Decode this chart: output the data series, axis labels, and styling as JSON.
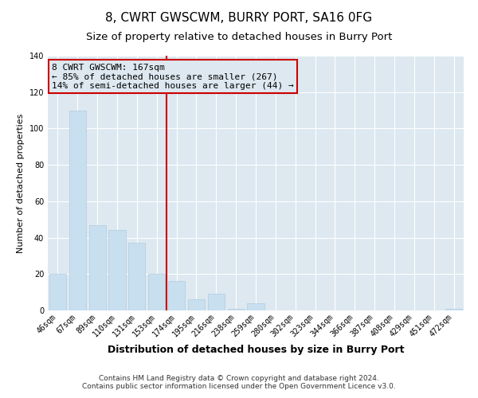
{
  "title": "8, CWRT GWSCWM, BURRY PORT, SA16 0FG",
  "subtitle": "Size of property relative to detached houses in Burry Port",
  "xlabel": "Distribution of detached houses by size in Burry Port",
  "ylabel": "Number of detached properties",
  "bar_color": "#c8dff0",
  "bar_edge_color": "#b0cce0",
  "categories": [
    "46sqm",
    "67sqm",
    "89sqm",
    "110sqm",
    "131sqm",
    "153sqm",
    "174sqm",
    "195sqm",
    "216sqm",
    "238sqm",
    "259sqm",
    "280sqm",
    "302sqm",
    "323sqm",
    "344sqm",
    "366sqm",
    "387sqm",
    "408sqm",
    "429sqm",
    "451sqm",
    "472sqm"
  ],
  "values": [
    20,
    110,
    47,
    44,
    37,
    20,
    16,
    6,
    9,
    1,
    4,
    0,
    0,
    0,
    0,
    0,
    0,
    0,
    0,
    0,
    1
  ],
  "ylim": [
    0,
    140
  ],
  "yticks": [
    0,
    20,
    40,
    60,
    80,
    100,
    120,
    140
  ],
  "vline_color": "#cc0000",
  "annotation_text": "8 CWRT GWSCWM: 167sqm\n← 85% of detached houses are smaller (267)\n14% of semi-detached houses are larger (44) →",
  "annotation_box_edge_color": "#cc0000",
  "footer_line1": "Contains HM Land Registry data © Crown copyright and database right 2024.",
  "footer_line2": "Contains public sector information licensed under the Open Government Licence v3.0.",
  "background_color": "#ffffff",
  "plot_bg_color": "#dde8f0",
  "grid_color": "#ffffff",
  "title_fontsize": 11,
  "subtitle_fontsize": 9.5,
  "xlabel_fontsize": 9,
  "ylabel_fontsize": 8,
  "tick_fontsize": 7,
  "footer_fontsize": 6.5,
  "annotation_fontsize": 8
}
